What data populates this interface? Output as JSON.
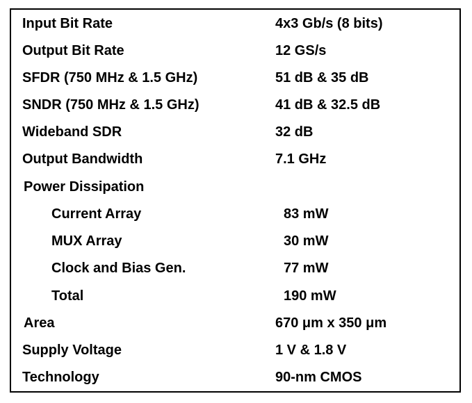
{
  "table": {
    "rows": [
      {
        "label": "Input Bit Rate",
        "value": "4x3 Gb/s (8 bits)"
      },
      {
        "label": "Output Bit Rate",
        "value": "12 GS/s"
      },
      {
        "label": "SFDR (750 MHz & 1.5 GHz)",
        "value": "51 dB & 35 dB"
      },
      {
        "label": "SNDR (750 MHz & 1.5 GHz)",
        "value": "41 dB & 32.5 dB"
      },
      {
        "label": "Wideband SDR",
        "value": "32 dB"
      },
      {
        "label": "Output Bandwidth",
        "value": "7.1 GHz"
      },
      {
        "label": "Power Dissipation",
        "value": ""
      },
      {
        "label": "Current Array",
        "value": "83 mW"
      },
      {
        "label": "MUX Array",
        "value": "30 mW"
      },
      {
        "label": "Clock and Bias Gen.",
        "value": "77 mW"
      },
      {
        "label": "Total",
        "value": "190 mW"
      },
      {
        "label": "Area",
        "value": "670 μm x 350 μm"
      },
      {
        "label": "Supply Voltage",
        "value": "1 V & 1.8 V"
      },
      {
        "label": "Technology",
        "value": "90-nm CMOS"
      }
    ]
  }
}
